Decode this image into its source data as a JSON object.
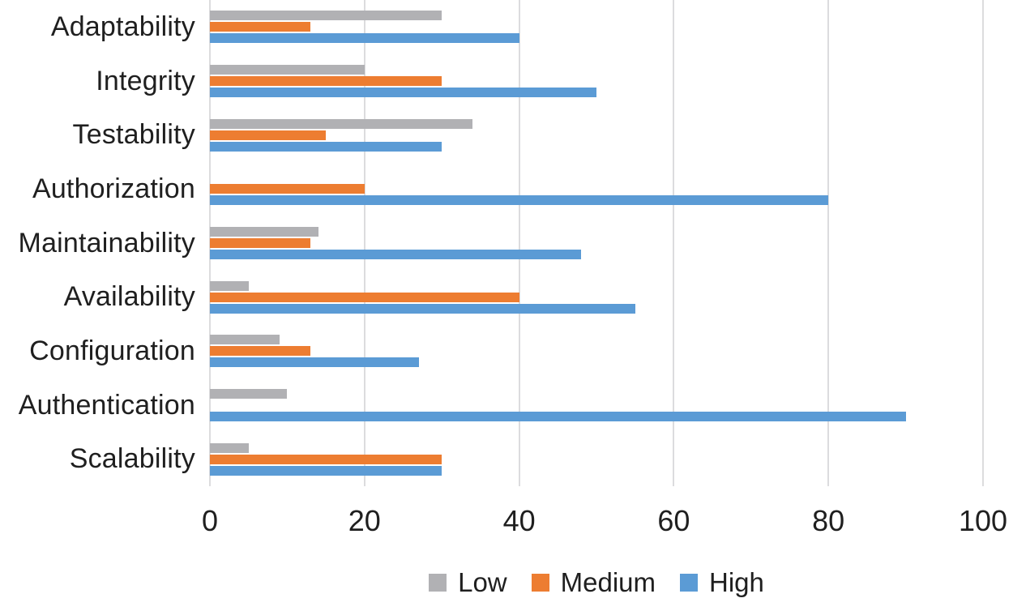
{
  "chart_data": {
    "type": "bar",
    "orientation": "horizontal",
    "title": "",
    "xlabel": "",
    "ylabel": "",
    "categories": [
      "Adaptability",
      "Integrity",
      "Testability",
      "Authorization",
      "Maintainability",
      "Availability",
      "Configuration",
      "Authentication",
      "Scalability"
    ],
    "series": [
      {
        "name": "Low",
        "color": "#b1b1b4",
        "values": [
          30,
          20,
          34,
          0,
          14,
          5,
          9,
          10,
          5
        ]
      },
      {
        "name": "Medium",
        "color": "#ed7d31",
        "values": [
          13,
          30,
          15,
          20,
          13,
          40,
          13,
          0,
          30
        ]
      },
      {
        "name": "High",
        "color": "#5b9bd5",
        "values": [
          40,
          50,
          30,
          80,
          48,
          55,
          27,
          90,
          30
        ]
      }
    ],
    "xlim": [
      0,
      100
    ],
    "x_ticks": [
      "0",
      "20",
      "40",
      "60",
      "80",
      "100"
    ],
    "grid": "vertical-gridlines-on",
    "legend_position": "bottom"
  },
  "colors": {
    "gridline": "#dcdcde",
    "text": "#1f1f1f",
    "background": "#ffffff"
  }
}
